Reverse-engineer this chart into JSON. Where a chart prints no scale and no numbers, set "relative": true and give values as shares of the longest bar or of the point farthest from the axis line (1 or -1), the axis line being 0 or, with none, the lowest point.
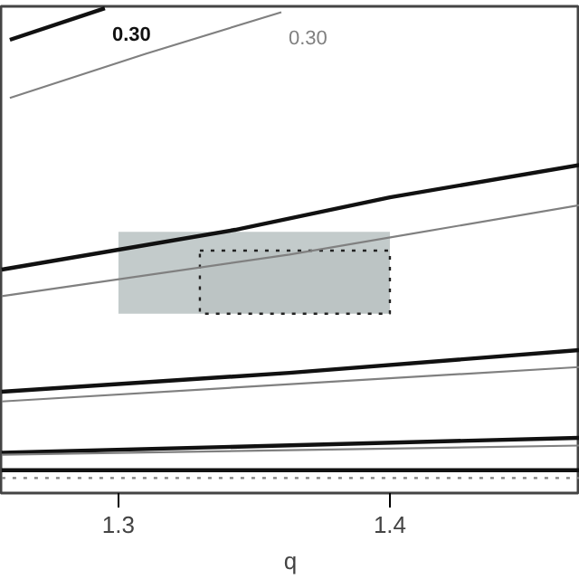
{
  "chart_data": {
    "type": "line",
    "relative": true,
    "xlabel": "q",
    "xlim": [
      1.2567,
      1.47
    ],
    "xticks": [
      1.3,
      1.4
    ],
    "tick_labels": "x",
    "grid": false,
    "line_style": "solid",
    "series": [
      {
        "type": "line",
        "color": "#c3cbcb",
        "x": [
          1.3,
          1.4
        ],
        "values": [
          null,
          null
        ],
        "lower": [
          0.37,
          0.37
        ],
        "upper": [
          0.539,
          0.539
        ]
      },
      {
        "type": "line",
        "color": "#222222",
        "line_style": "dotted",
        "x": [
          1.33,
          1.4
        ],
        "values": [
          null,
          null
        ],
        "lower": [
          0.37,
          0.37
        ],
        "upper": [
          0.5,
          0.5
        ]
      },
      {
        "name": "0.30",
        "color": "#111111",
        "x": [
          1.26,
          1.295
        ],
        "values": [
          0.935,
          1.0
        ]
      },
      {
        "name": "0.30",
        "color": "#808080",
        "x": [
          1.26,
          1.31,
          1.36
        ],
        "values": [
          0.815,
          0.906,
          0.992
        ]
      },
      {
        "color": "#111111",
        "x": [
          1.257,
          1.343,
          1.4,
          1.47
        ],
        "values": [
          0.461,
          0.543,
          0.61,
          0.677
        ]
      },
      {
        "color": "#808080",
        "x": [
          1.257,
          1.363,
          1.47
        ],
        "values": [
          0.406,
          0.492,
          0.594
        ]
      },
      {
        "color": "#111111",
        "x": [
          1.257,
          1.363,
          1.47
        ],
        "values": [
          0.209,
          0.248,
          0.295
        ]
      },
      {
        "color": "#808080",
        "x": [
          1.257,
          1.47
        ],
        "values": [
          0.189,
          0.26
        ]
      },
      {
        "color": "#111111",
        "x": [
          1.257,
          1.47
        ],
        "values": [
          0.083,
          0.114
        ]
      },
      {
        "color": "#808080",
        "x": [
          1.257,
          1.47
        ],
        "values": [
          0.079,
          0.098
        ]
      },
      {
        "color": "#111111",
        "x": [
          1.257,
          1.47
        ],
        "values": [
          0.047,
          0.047
        ]
      },
      {
        "color": "#808080",
        "line_style": "dotted",
        "x": [
          1.257,
          1.47
        ],
        "values": [
          0.031,
          0.031
        ]
      }
    ]
  }
}
